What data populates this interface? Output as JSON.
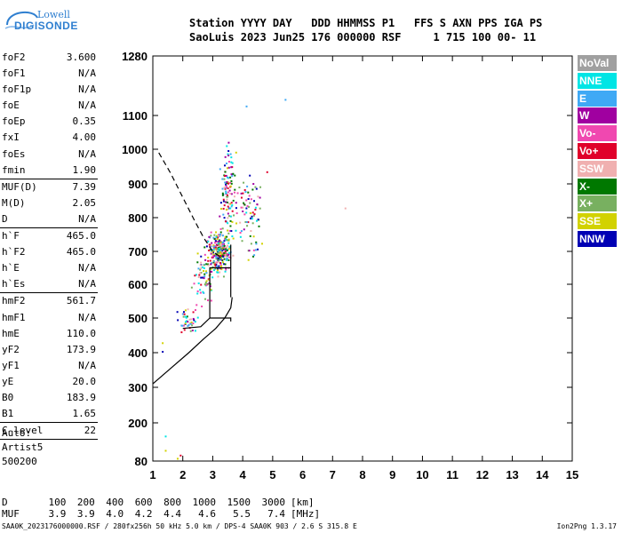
{
  "logo": {
    "top": "Lowell",
    "bottom": "DIGISONDE"
  },
  "header": {
    "line1": "Station YYYY DAY   DDD HHMMSS P1   FFS S AXN PPS IGA PS",
    "line2": "SaoLuis 2023 Jun25 176 000000 RSF     1 715 100 00- 11"
  },
  "params": [
    {
      "label": "foF2",
      "value": "3.600"
    },
    {
      "label": "foF1",
      "value": "N/A"
    },
    {
      "label": "foF1p",
      "value": "N/A"
    },
    {
      "label": "foE",
      "value": "N/A"
    },
    {
      "label": "foEp",
      "value": "0.35"
    },
    {
      "label": "fxI",
      "value": "4.00"
    },
    {
      "label": "foEs",
      "value": "N/A"
    },
    {
      "label": "fmin",
      "value": "1.90",
      "sep_after": true
    },
    {
      "label": "MUF(D)",
      "value": "7.39"
    },
    {
      "label": "M(D)",
      "value": "2.05"
    },
    {
      "label": "D",
      "value": "N/A",
      "sep_after": true
    },
    {
      "label": "h`F",
      "value": "465.0"
    },
    {
      "label": "h`F2",
      "value": "465.0"
    },
    {
      "label": "h`E",
      "value": "N/A"
    },
    {
      "label": "h`Es",
      "value": "N/A",
      "sep_after": true
    },
    {
      "label": "hmF2",
      "value": "561.7"
    },
    {
      "label": "hmF1",
      "value": "N/A"
    },
    {
      "label": "hmE",
      "value": "110.0"
    },
    {
      "label": "yF2",
      "value": "173.9"
    },
    {
      "label": "yF1",
      "value": "N/A"
    },
    {
      "label": "yE",
      "value": "20.0"
    },
    {
      "label": "B0",
      "value": "183.9"
    },
    {
      "label": "B1",
      "value": "1.65",
      "sep_after": true
    },
    {
      "label": "C-level",
      "value": "22",
      "sep_after": true
    }
  ],
  "auto_block": [
    "Auto:",
    "Artist5",
    "500200"
  ],
  "legend": [
    {
      "label": "NoVal",
      "color": "#a0a0a0"
    },
    {
      "label": "NNE",
      "color": "#00e5e5"
    },
    {
      "label": "E",
      "color": "#3fa9f5"
    },
    {
      "label": "W",
      "color": "#a000a0"
    },
    {
      "label": "Vo-",
      "color": "#f048b0"
    },
    {
      "label": "Vo+",
      "color": "#e0002a"
    },
    {
      "label": "SSW",
      "color": "#f0b0b0"
    },
    {
      "label": "X-",
      "color": "#007800"
    },
    {
      "label": "X+",
      "color": "#78b060"
    },
    {
      "label": "SSE",
      "color": "#d2d200"
    },
    {
      "label": "NNW",
      "color": "#0000b4"
    }
  ],
  "dmuf": {
    "d_label": "D",
    "d_values": [
      "100",
      "200",
      "400",
      "600",
      "800",
      "1000",
      "1500",
      "3000"
    ],
    "d_unit": "[km]",
    "muf_label": "MUF",
    "muf_values": [
      "3.9",
      "3.9",
      "4.0",
      "4.2",
      "4.4",
      "4.6",
      "5.5",
      "7.4"
    ],
    "muf_unit": "[MHz]"
  },
  "footer": {
    "left": "SAA0K_2023176000000.RSF / 280fx256h 50 kHz 5.0 km / DPS-4 SAA0K 903 / 2.6 S 315.8 E",
    "right": "Ion2Png 1.3.17"
  },
  "chart_data": {
    "type": "scatter",
    "x_ticks": [
      1,
      2,
      3,
      4,
      5,
      6,
      7,
      8,
      9,
      10,
      11,
      12,
      13,
      14,
      15
    ],
    "y_ticks": [
      80,
      200,
      300,
      400,
      500,
      600,
      700,
      800,
      900,
      1000,
      1100,
      1280
    ],
    "xlim": [
      1,
      15
    ],
    "ylim": [
      80,
      1280
    ],
    "profile": [
      [
        1.0,
        310
      ],
      [
        1.6,
        355
      ],
      [
        2.2,
        400
      ],
      [
        2.7,
        440
      ],
      [
        3.1,
        470
      ],
      [
        3.4,
        500
      ],
      [
        3.6,
        530
      ],
      [
        3.65,
        561.7
      ]
    ],
    "profile_vertical": [
      [
        3.6,
        561.7
      ],
      [
        3.6,
        720
      ]
    ],
    "trace_low": [
      [
        2.0,
        470
      ],
      [
        2.6,
        475
      ],
      [
        2.9,
        500
      ],
      [
        3.6,
        500
      ],
      [
        3.6,
        490
      ]
    ],
    "trace_mid": [
      [
        2.9,
        500
      ],
      [
        2.9,
        650
      ],
      [
        3.6,
        650
      ]
    ],
    "muf_curve": [
      [
        1.2,
        990
      ],
      [
        1.6,
        930
      ],
      [
        2.0,
        860
      ],
      [
        2.4,
        790
      ],
      [
        2.7,
        740
      ],
      [
        3.0,
        700
      ],
      [
        3.3,
        680
      ]
    ],
    "clusters": [
      {
        "cx": 3.2,
        "cy": 700,
        "sx": 0.35,
        "sy": 55,
        "n": 260
      },
      {
        "cx": 3.5,
        "cy": 880,
        "sx": 0.25,
        "sy": 120,
        "n": 120
      },
      {
        "cx": 2.7,
        "cy": 620,
        "sx": 0.35,
        "sy": 80,
        "n": 70
      },
      {
        "cx": 2.2,
        "cy": 490,
        "sx": 0.35,
        "sy": 30,
        "n": 40
      },
      {
        "cx": 4.2,
        "cy": 830,
        "sx": 0.4,
        "sy": 90,
        "n": 70
      },
      {
        "cx": 4.4,
        "cy": 700,
        "sx": 0.2,
        "sy": 20,
        "n": 10
      }
    ],
    "isolated": [
      [
        4.1,
        1130,
        "#3fa9f5"
      ],
      [
        5.4,
        1150,
        "#3fa9f5"
      ],
      [
        7.4,
        830,
        "#f0b0b0"
      ],
      [
        1.4,
        160,
        "#00e5e5"
      ],
      [
        1.4,
        115,
        "#d2d200"
      ],
      [
        1.8,
        90,
        "#d2d200"
      ],
      [
        1.9,
        100,
        "#e0002a"
      ],
      [
        1.3,
        430,
        "#d2d200"
      ],
      [
        1.3,
        405,
        "#0000b4"
      ]
    ]
  }
}
